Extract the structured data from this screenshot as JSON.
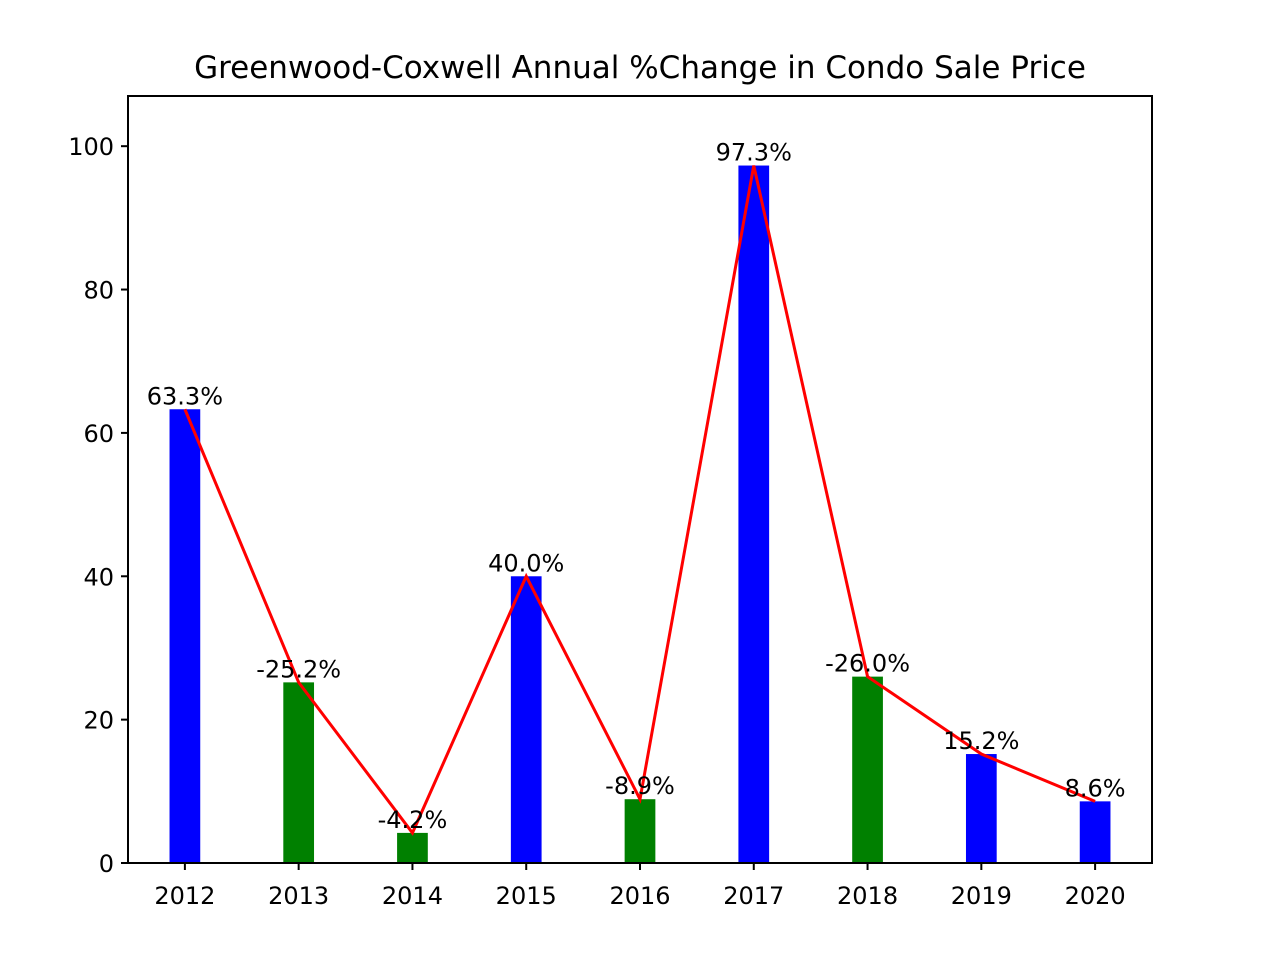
{
  "chart_data": {
    "type": "bar",
    "title": "Greenwood-Coxwell Annual %Change in Condo Sale Price",
    "xlabel": "",
    "ylabel": "",
    "categories": [
      "2012",
      "2013",
      "2014",
      "2015",
      "2016",
      "2017",
      "2018",
      "2019",
      "2020"
    ],
    "values": [
      63.3,
      25.2,
      4.2,
      40.0,
      8.9,
      97.3,
      26.0,
      15.2,
      8.6
    ],
    "pct_change": [
      63.3,
      -25.2,
      -4.2,
      40.0,
      -8.9,
      97.3,
      -26.0,
      15.2,
      8.6
    ],
    "data_labels": [
      "63.3%",
      "-25.2%",
      "-4.2%",
      "40.0%",
      "-8.9%",
      "97.3%",
      "-26.0%",
      "15.2%",
      "8.6%"
    ],
    "bar_colors": [
      "#0000ff",
      "#008000",
      "#008000",
      "#0000ff",
      "#008000",
      "#0000ff",
      "#008000",
      "#0000ff",
      "#0000ff"
    ],
    "line_color": "#ff0000",
    "line_values": [
      63.3,
      25.2,
      4.2,
      40.0,
      8.9,
      97.3,
      26.0,
      15.2,
      8.6
    ],
    "ylim": [
      0,
      107
    ],
    "yticks": [
      0,
      20,
      40,
      60,
      80,
      100
    ],
    "grid": false,
    "legend": "none"
  }
}
